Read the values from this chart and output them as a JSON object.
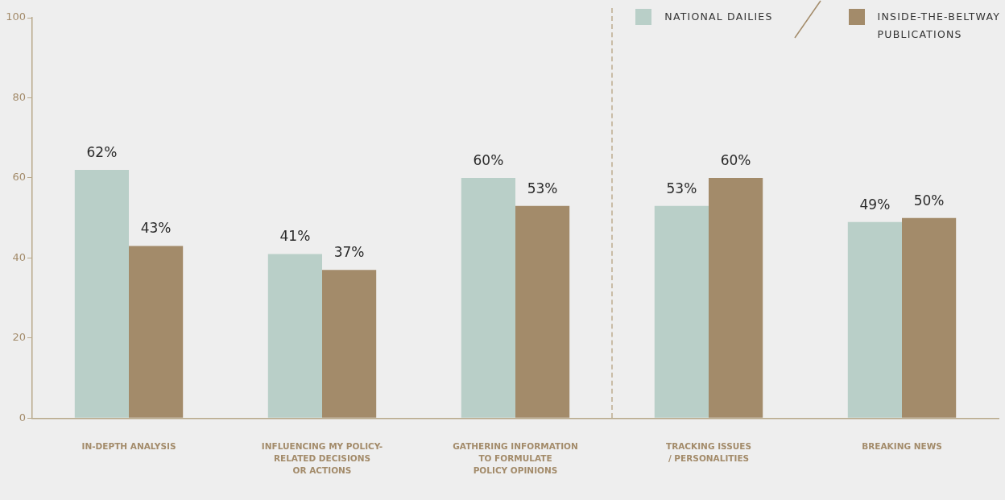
{
  "chart_data": {
    "type": "bar",
    "categories": [
      "IN-DEPTH ANALYSIS",
      "INFLUENCING MY POLICY-\nRELATED DECISIONS\nOR ACTIONS",
      "GATHERING INFORMATION\nTO FORMULATE\nPOLICY OPINIONS",
      "TRACKING ISSUES\n/ PERSONALITIES",
      "BREAKING NEWS"
    ],
    "series": [
      {
        "name": "NATIONAL DAILIES",
        "color": "#b9cfc8",
        "values": [
          62,
          41,
          60,
          53,
          49
        ],
        "value_labels": [
          "62%",
          "41%",
          "60%",
          "53%",
          "49%"
        ]
      },
      {
        "name": "INSIDE-THE-BELTWAY\nPUBLICATIONS",
        "color": "#a38b6a",
        "values": [
          43,
          37,
          53,
          60,
          50
        ],
        "value_labels": [
          "43%",
          "37%",
          "53%",
          "60%",
          "50%"
        ]
      }
    ],
    "ylim": [
      0,
      100
    ],
    "yticks": [
      0,
      20,
      40,
      60,
      80,
      100
    ],
    "grid": false,
    "legend": "top right"
  }
}
